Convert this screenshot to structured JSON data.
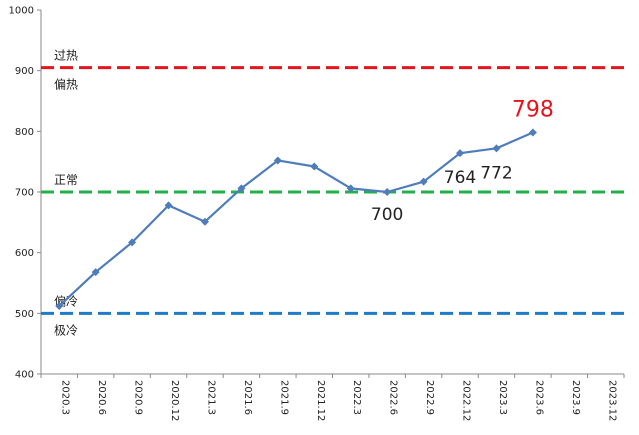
{
  "chart_data": {
    "type": "line",
    "title": "",
    "xlabel": "",
    "ylabel": "",
    "ylim": [
      400,
      1000
    ],
    "yticks": [
      400,
      500,
      600,
      700,
      800,
      900,
      1000
    ],
    "grid": false,
    "categories": [
      "2020.3",
      "2020.6",
      "2020.9",
      "2020.12",
      "2021.3",
      "2021.6",
      "2021.9",
      "2021.12",
      "2022.3",
      "2022.6",
      "2022.9",
      "2022.12",
      "2023.3",
      "2023.6",
      "2023.9",
      "2023.12"
    ],
    "series": [
      {
        "name": "",
        "color": "#4f7dbb",
        "values": [
          512,
          568,
          617,
          678,
          651,
          706,
          752,
          742,
          706,
          700,
          717,
          764,
          772,
          798,
          null,
          null
        ]
      }
    ],
    "reference_lines": [
      {
        "value": 905,
        "color": "#e8141c",
        "label_above": "过热",
        "label_below": "偏热"
      },
      {
        "value": 700,
        "color": "#22b04a",
        "label_above": "正常",
        "label_below": ""
      },
      {
        "value": 500,
        "color": "#1f7ac8",
        "label_above": "偏冷",
        "label_below": "极冷"
      }
    ],
    "data_labels": [
      {
        "index": 9,
        "text": "700",
        "color": "#222222"
      },
      {
        "index": 11,
        "text": "764",
        "color": "#222222"
      },
      {
        "index": 12,
        "text": "772",
        "color": "#222222"
      },
      {
        "index": 13,
        "text": "798",
        "color": "#e8141c"
      }
    ]
  }
}
